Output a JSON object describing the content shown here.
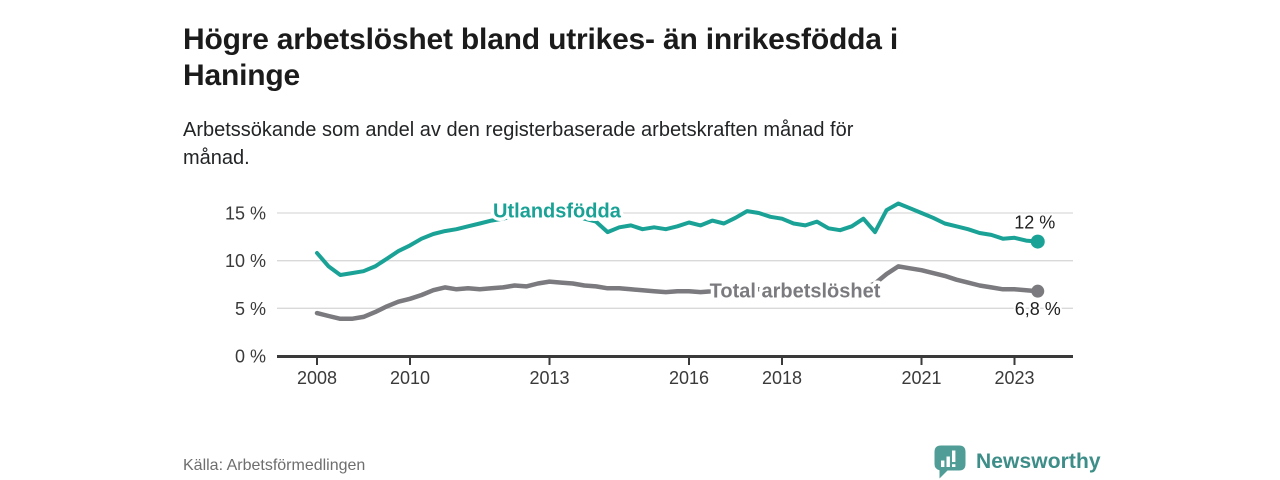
{
  "header": {
    "title_lines": [
      "Högre arbetslöshet bland utrikes- än inrikesfödda i",
      "Haninge"
    ],
    "subtitle_lines": [
      "Arbetssökande som andel av den registerbaserade arbetskraften månad för",
      "månad."
    ]
  },
  "footer": {
    "source": "Källa: Arbetsförmedlingen",
    "brand": "Newsworthy",
    "brand_color": "#3d8d88",
    "brand_icon_color": "#4f9d96"
  },
  "chart_data": {
    "type": "line",
    "title": "Högre arbetslöshet bland utrikes- än inrikesfödda i Haninge",
    "subtitle": "Arbetssökande som andel av den registerbaserade arbetskraften månad för månad.",
    "xlabel": "",
    "ylabel": "",
    "x_start": 2008.0,
    "x_step": 0.25,
    "xlim": [
      2007.15,
      2024.25
    ],
    "ylim": [
      0,
      16.5
    ],
    "grid": "horizontal",
    "x_ticks": [
      2008,
      2010,
      2013,
      2016,
      2018,
      2021,
      2023
    ],
    "x_tick_labels": [
      "2008",
      "2010",
      "2013",
      "2016",
      "2018",
      "2021",
      "2023"
    ],
    "y_ticks": [
      0,
      5,
      10,
      15
    ],
    "y_tick_labels": [
      "0 %",
      "5 %",
      "10 %",
      "15 %"
    ],
    "axis_color": "#3a3a3a",
    "grid_color": "#d9d9d9",
    "tick_label_color": "#3a3a3a",
    "series": [
      {
        "name": "Utlandsfödda",
        "color": "#1aa296",
        "end_label": "12 %",
        "end_value": 12.0,
        "label_pos": {
          "x": 2013.16,
          "y": 15.25
        },
        "values": [
          10.8,
          9.4,
          8.5,
          8.7,
          8.9,
          9.4,
          10.2,
          11.0,
          11.6,
          12.3,
          12.8,
          13.1,
          13.3,
          13.6,
          13.9,
          14.2,
          14.4,
          14.7,
          14.6,
          14.8,
          14.8,
          14.9,
          14.7,
          14.4,
          14.1,
          13.0,
          13.5,
          13.7,
          13.3,
          13.5,
          13.3,
          13.6,
          14.0,
          13.7,
          14.2,
          13.9,
          14.5,
          15.2,
          15.0,
          14.6,
          14.4,
          13.9,
          13.7,
          14.1,
          13.4,
          13.2,
          13.6,
          14.4,
          13.0,
          15.3,
          16.0,
          15.5,
          15.0,
          14.5,
          13.9,
          13.6,
          13.3,
          12.9,
          12.7,
          12.3,
          12.4,
          12.1,
          12.0
        ]
      },
      {
        "name": "Total arbetslöshet",
        "color": "#7b7b7f",
        "end_label": "6,8 %",
        "end_value": 6.8,
        "label_pos": {
          "x": 2018.28,
          "y": 6.85
        },
        "values": [
          4.5,
          4.2,
          3.9,
          3.9,
          4.1,
          4.6,
          5.2,
          5.7,
          6.0,
          6.4,
          6.9,
          7.2,
          7.0,
          7.1,
          7.0,
          7.1,
          7.2,
          7.4,
          7.3,
          7.6,
          7.8,
          7.7,
          7.6,
          7.4,
          7.3,
          7.1,
          7.1,
          7.0,
          6.9,
          6.8,
          6.7,
          6.8,
          6.8,
          6.7,
          6.8,
          6.9,
          7.0,
          7.1,
          7.0,
          6.9,
          6.8,
          6.9,
          6.8,
          6.7,
          6.6,
          6.7,
          6.9,
          7.1,
          7.6,
          8.6,
          9.4,
          9.2,
          9.0,
          8.7,
          8.4,
          8.0,
          7.7,
          7.4,
          7.2,
          7.0,
          7.0,
          6.9,
          6.8
        ]
      }
    ]
  }
}
